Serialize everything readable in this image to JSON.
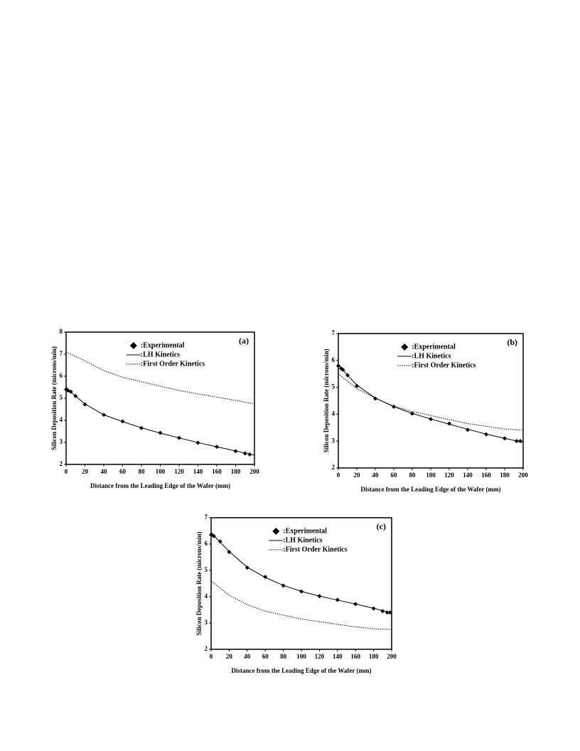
{
  "chart_data": [
    {
      "type": "line",
      "annotation": "(a)",
      "xlabel": "Distance from the Leading Edge of the Wafer (mm)",
      "ylabel": "Silicon Deposition Rate (microns/min)",
      "xlim": [
        0,
        200
      ],
      "xticks": [
        0,
        20,
        40,
        60,
        80,
        100,
        120,
        140,
        160,
        180,
        200
      ],
      "ylim": [
        2,
        8
      ],
      "yticks": [
        2,
        3,
        4,
        5,
        6,
        7,
        8
      ],
      "series": [
        {
          "name": ":Experimental",
          "color": "#000",
          "style": "diamond",
          "x": [
            0,
            2,
            5,
            10,
            20,
            40,
            60,
            80,
            100,
            120,
            140,
            160,
            180,
            190,
            195
          ],
          "values": [
            5.4,
            5.35,
            5.3,
            5.1,
            4.72,
            4.25,
            3.95,
            3.65,
            3.43,
            3.2,
            2.98,
            2.8,
            2.6,
            2.5,
            2.45
          ]
        },
        {
          "name": ":LH Kinetics",
          "color": "#000",
          "style": "solid",
          "x": [
            0,
            5,
            10,
            20,
            40,
            60,
            80,
            100,
            120,
            140,
            160,
            180,
            200
          ],
          "values": [
            5.5,
            5.28,
            5.1,
            4.74,
            4.25,
            3.94,
            3.66,
            3.42,
            3.2,
            2.99,
            2.8,
            2.61,
            2.42
          ]
        },
        {
          "name": ":First Order Kinetics",
          "color": "#000",
          "style": "dotted",
          "x": [
            0,
            20,
            40,
            60,
            80,
            100,
            120,
            140,
            160,
            180,
            200
          ],
          "values": [
            7.1,
            6.7,
            6.25,
            5.95,
            5.75,
            5.55,
            5.35,
            5.2,
            5.05,
            4.9,
            4.75
          ]
        }
      ]
    },
    {
      "type": "line",
      "annotation": "(b)",
      "xlabel": "Distance from the Leading Edge of the Wafer (mm)",
      "ylabel": "Silicon Deposition Rate (microns/min)",
      "xlim": [
        0,
        200
      ],
      "xticks": [
        0,
        20,
        40,
        60,
        80,
        100,
        120,
        140,
        160,
        180,
        200
      ],
      "ylim": [
        2,
        7
      ],
      "yticks": [
        2,
        3,
        4,
        5,
        6,
        7
      ],
      "series": [
        {
          "name": ":Experimental",
          "color": "#000",
          "style": "diamond",
          "x": [
            0,
            3,
            5,
            10,
            20,
            40,
            60,
            80,
            100,
            120,
            140,
            160,
            180,
            193,
            197
          ],
          "values": [
            5.8,
            5.7,
            5.65,
            5.45,
            5.05,
            4.58,
            4.28,
            4.02,
            3.82,
            3.65,
            3.42,
            3.25,
            3.1,
            3.0,
            3.0
          ]
        },
        {
          "name": ":LH Kinetics",
          "color": "#000",
          "style": "solid",
          "x": [
            0,
            5,
            10,
            20,
            40,
            60,
            80,
            100,
            120,
            140,
            160,
            180,
            200
          ],
          "values": [
            5.85,
            5.65,
            5.45,
            5.08,
            4.6,
            4.28,
            4.03,
            3.82,
            3.63,
            3.44,
            3.26,
            3.1,
            2.95
          ]
        },
        {
          "name": ":First Order Kinetics",
          "color": "#000",
          "style": "dotted",
          "x": [
            0,
            20,
            40,
            60,
            80,
            100,
            120,
            140,
            160,
            180,
            200
          ],
          "values": [
            5.5,
            4.95,
            4.6,
            4.3,
            4.1,
            3.95,
            3.8,
            3.65,
            3.55,
            3.45,
            3.4
          ]
        }
      ]
    },
    {
      "type": "line",
      "annotation": "(c)",
      "xlabel": "Distance from the Leading Edge of the Wafer (mm)",
      "ylabel": "Silicon Deposition Rate (microns/min)",
      "xlim": [
        0,
        200
      ],
      "xticks": [
        0,
        20,
        40,
        60,
        80,
        100,
        120,
        140,
        160,
        180,
        200
      ],
      "ylim": [
        2,
        7
      ],
      "yticks": [
        2,
        3,
        4,
        5,
        6,
        7
      ],
      "series": [
        {
          "name": ":Experimental",
          "color": "#000",
          "style": "diamond",
          "x": [
            0,
            3,
            10,
            20,
            40,
            60,
            80,
            100,
            120,
            140,
            160,
            180,
            190,
            195,
            198
          ],
          "values": [
            6.35,
            6.3,
            6.1,
            5.7,
            5.1,
            4.75,
            4.42,
            4.2,
            4.02,
            3.88,
            3.72,
            3.55,
            3.45,
            3.4,
            3.4
          ]
        },
        {
          "name": ":LH Kinetics",
          "color": "#000",
          "style": "solid",
          "x": [
            0,
            5,
            10,
            20,
            40,
            60,
            80,
            100,
            120,
            140,
            160,
            180,
            200
          ],
          "values": [
            6.45,
            6.25,
            6.07,
            5.72,
            5.12,
            4.73,
            4.43,
            4.2,
            4.02,
            3.87,
            3.72,
            3.56,
            3.38
          ]
        },
        {
          "name": ":First Order Kinetics",
          "color": "#000",
          "style": "dotted",
          "x": [
            0,
            20,
            40,
            60,
            80,
            100,
            120,
            140,
            160,
            180,
            200
          ],
          "values": [
            4.6,
            4.05,
            3.7,
            3.45,
            3.3,
            3.15,
            3.05,
            2.95,
            2.85,
            2.78,
            2.75
          ]
        }
      ]
    }
  ]
}
